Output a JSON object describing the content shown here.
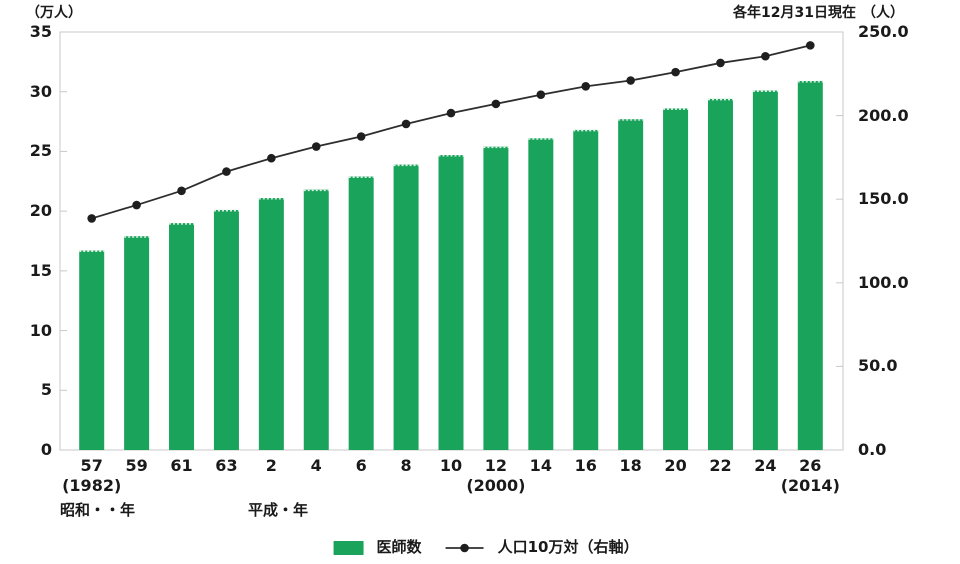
{
  "header": {
    "date_note": "各年12月31日現在"
  },
  "chart_data": {
    "type": "bar+line",
    "title": "",
    "note": "各年12月31日現在",
    "grid": false,
    "legend_position": "bottom",
    "categories": [
      "57",
      "59",
      "61",
      "63",
      "2",
      "4",
      "6",
      "8",
      "10",
      "12",
      "14",
      "16",
      "18",
      "20",
      "22",
      "24",
      "26"
    ],
    "category_sublabels": {
      "0": "(1982)",
      "9": "(2000)",
      "16": "(2014)"
    },
    "era_labels": {
      "showa": "昭和・・年",
      "heisei": "平成・年"
    },
    "left_axis": {
      "label": "（万人）",
      "min": 0,
      "max": 35,
      "step": 5,
      "tick_labels": [
        "0",
        "5",
        "10",
        "15",
        "20",
        "25",
        "30",
        "35"
      ]
    },
    "right_axis": {
      "label": "（人）",
      "min": 0,
      "max": 250,
      "step": 50,
      "tick_labels": [
        "0.0",
        "50.0",
        "100.0",
        "150.0",
        "200.0",
        "250.0"
      ]
    },
    "series": [
      {
        "name": "医師数",
        "type": "bar",
        "axis": "left",
        "unit": "万人",
        "color": "#1aa35b",
        "bar_top_edge_color": "#dff2e7",
        "values": [
          16.7,
          17.9,
          19.0,
          20.1,
          21.1,
          21.8,
          22.9,
          23.9,
          24.7,
          25.4,
          26.1,
          26.8,
          27.7,
          28.6,
          29.4,
          30.1,
          30.9
        ]
      },
      {
        "name": "人口10万対（右軸）",
        "type": "line",
        "axis": "right",
        "unit": "人",
        "color": "#2e2e2e",
        "marker_color": "#1f1f1f",
        "values": [
          138.5,
          146.5,
          155.0,
          166.5,
          174.5,
          181.5,
          187.5,
          195.0,
          201.5,
          207.0,
          212.5,
          217.5,
          221.0,
          226.0,
          231.5,
          235.5,
          242.0
        ]
      }
    ],
    "frame_color": "#c8c8c8",
    "text_color": "#1a1a1a"
  }
}
